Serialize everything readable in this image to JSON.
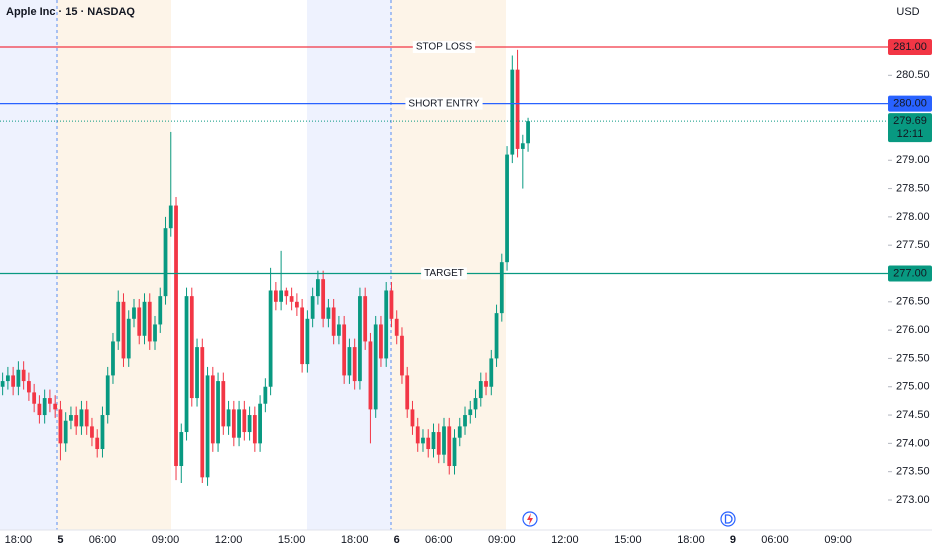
{
  "chart_data": {
    "type": "candlestick",
    "title": "Apple Inc · 15 · NASDAQ",
    "currency": "USD",
    "up_color": "#089981",
    "down_color": "#f23645",
    "ylim": [
      272.47,
      281.83
    ],
    "yticks": [
      {
        "value": 273,
        "label": "273.00"
      },
      {
        "value": 273.5,
        "label": "273.50"
      },
      {
        "value": 274,
        "label": "274.00"
      },
      {
        "value": 274.5,
        "label": "274.50"
      },
      {
        "value": 275,
        "label": "275.00"
      },
      {
        "value": 275.5,
        "label": "275.50"
      },
      {
        "value": 276,
        "label": "276.00"
      },
      {
        "value": 276.5,
        "label": "276.50"
      },
      {
        "value": 277.5,
        "label": "277.50"
      },
      {
        "value": 278,
        "label": "278.00"
      },
      {
        "value": 278.5,
        "label": "278.50"
      },
      {
        "value": 279,
        "label": "279.00"
      },
      {
        "value": 279.5,
        "label": "279.50"
      },
      {
        "value": 280.5,
        "label": "280.50"
      }
    ],
    "levels": [
      {
        "name": "STOP LOSS",
        "value": 281,
        "label": "281.00",
        "color": "#f23645"
      },
      {
        "name": "SHORT ENTRY",
        "value": 280,
        "label": "280.00",
        "color": "#2962ff"
      },
      {
        "name": "TARGET",
        "value": 277,
        "label": "277.00",
        "color": "#089981"
      }
    ],
    "last_price": {
      "value": 279.69,
      "countdown": "12:11",
      "color": "#089981"
    },
    "categories": [
      null,
      null,
      null,
      "18:00",
      null,
      null,
      null,
      null,
      null,
      null,
      null,
      "5",
      null,
      null,
      null,
      null,
      null,
      null,
      null,
      "06:00",
      null,
      null,
      null,
      null,
      null,
      null,
      null,
      null,
      null,
      null,
      null,
      "09:00",
      null,
      null,
      null,
      null,
      null,
      null,
      null,
      null,
      null,
      null,
      null,
      "12:00",
      null,
      null,
      null,
      null,
      null,
      null,
      null,
      null,
      null,
      null,
      null,
      "15:00",
      null,
      null,
      null,
      null,
      null,
      null,
      null,
      null,
      null,
      null,
      null,
      "18:00",
      null,
      null,
      null,
      null,
      null,
      null,
      null,
      "6",
      null,
      null,
      null,
      null,
      null,
      null,
      null,
      "06:00",
      null,
      null,
      null,
      null,
      null,
      null,
      null,
      null,
      null,
      null,
      null,
      "09:00",
      null,
      null,
      null,
      null,
      null,
      null,
      null,
      null,
      null,
      null,
      null,
      "12:00",
      null,
      null,
      null,
      null,
      null,
      null,
      null,
      null,
      null,
      null,
      null,
      "15:00",
      null,
      null,
      null,
      null,
      null,
      null,
      null,
      null,
      null,
      null,
      null,
      "18:00",
      null,
      null,
      null,
      null,
      null,
      null,
      null,
      "9",
      null,
      null,
      null,
      null,
      null,
      null,
      null,
      "06:00",
      null,
      null,
      null,
      null,
      null,
      null,
      null,
      null,
      null,
      null,
      null,
      "09:00",
      null,
      null,
      null,
      null,
      null,
      null,
      null,
      null,
      null
    ],
    "open": [
      275.0,
      275.1,
      275.2,
      275.0,
      275.3,
      275.1,
      274.9,
      274.7,
      274.5,
      274.8,
      274.7,
      274.6,
      274.0,
      274.4,
      274.5,
      274.3,
      274.6,
      274.3,
      274.1,
      273.9,
      274.5,
      275.2,
      275.8,
      276.5,
      275.5,
      276.2,
      276.4,
      275.9,
      276.5,
      275.8,
      276.1,
      276.6,
      277.8,
      278.2,
      273.6,
      274.2,
      276.6,
      274.8,
      275.7,
      273.4,
      275.2,
      274.0,
      275.1,
      274.3,
      274.6,
      274.1,
      274.6,
      274.2,
      274.5,
      274.0,
      274.7,
      275.0,
      276.7,
      276.5,
      276.7,
      276.6,
      276.5,
      276.4,
      275.4,
      276.2,
      276.6,
      276.9,
      276.2,
      276.4,
      275.9,
      276.1,
      275.2,
      275.7,
      275.1,
      276.6,
      275.8,
      274.6,
      276.1,
      275.5,
      276.7,
      276.2,
      275.9,
      275.2,
      274.6,
      274.3,
      274.0,
      274.1,
      273.9,
      274.2,
      273.8,
      274.3,
      273.6,
      274.1,
      274.3,
      274.5,
      274.6,
      274.8,
      275.1,
      275.0,
      275.5,
      276.3,
      277.2,
      279.1,
      280.6,
      279.2,
      279.3,
      null,
      null,
      null,
      null,
      null,
      null,
      null,
      null,
      null,
      null,
      null,
      null,
      null,
      null,
      null,
      null,
      null,
      null,
      null,
      null,
      null,
      null,
      null,
      null,
      null,
      null,
      null,
      null,
      null,
      null,
      null,
      null,
      null,
      null,
      null,
      null,
      null,
      null,
      null,
      null,
      null,
      null,
      null,
      null,
      null,
      null,
      null,
      null,
      null,
      null,
      null,
      null,
      null,
      null,
      null,
      null,
      null,
      null,
      null,
      null,
      null,
      null,
      null,
      null,
      null,
      null,
      null,
      null
    ],
    "high": [
      275.25,
      275.35,
      275.35,
      275.45,
      275.45,
      275.25,
      275.05,
      274.85,
      274.95,
      274.95,
      274.85,
      274.75,
      274.55,
      274.65,
      274.65,
      274.75,
      274.75,
      274.45,
      274.25,
      274.65,
      275.35,
      275.95,
      276.7,
      276.65,
      276.35,
      276.55,
      276.55,
      276.65,
      276.65,
      276.25,
      276.75,
      278.0,
      279.5,
      278.35,
      274.35,
      276.75,
      276.75,
      275.85,
      275.85,
      275.35,
      275.35,
      275.25,
      275.25,
      274.75,
      274.75,
      274.75,
      274.75,
      274.65,
      274.65,
      274.85,
      275.15,
      277.1,
      276.85,
      277.4,
      276.75,
      276.75,
      276.65,
      276.55,
      276.35,
      276.75,
      277.05,
      277.05,
      276.55,
      276.55,
      276.25,
      276.25,
      275.85,
      275.85,
      276.75,
      276.75,
      275.95,
      276.25,
      276.25,
      276.85,
      276.85,
      276.35,
      276.05,
      275.35,
      274.75,
      274.45,
      274.25,
      274.25,
      274.35,
      274.35,
      274.45,
      274.45,
      274.25,
      274.45,
      274.65,
      274.75,
      274.95,
      275.25,
      275.25,
      275.65,
      276.45,
      277.35,
      279.25,
      280.85,
      280.95,
      279.45,
      279.75,
      null,
      null,
      null,
      null,
      null,
      null,
      null,
      null,
      null,
      null,
      null,
      null,
      null,
      null,
      null,
      null,
      null,
      null,
      null,
      null,
      null,
      null,
      null,
      null,
      null,
      null,
      null,
      null,
      null,
      null,
      null,
      null,
      null,
      null,
      null,
      null,
      null,
      null,
      null,
      null,
      null,
      null,
      null,
      null,
      null,
      null,
      null,
      null,
      null,
      null,
      null,
      null,
      null,
      null,
      null,
      null,
      null,
      null,
      null,
      null,
      null,
      null,
      null,
      null,
      null,
      null,
      null,
      null
    ],
    "low": [
      274.85,
      274.95,
      274.85,
      274.85,
      274.95,
      274.75,
      274.55,
      274.35,
      274.35,
      274.55,
      274.45,
      273.7,
      273.85,
      274.25,
      274.15,
      274.15,
      274.15,
      273.95,
      273.75,
      273.75,
      274.35,
      275.05,
      275.65,
      275.35,
      275.35,
      276.05,
      275.75,
      275.75,
      275.65,
      275.65,
      275.95,
      276.45,
      277.65,
      273.35,
      273.3,
      274.05,
      274.65,
      274.65,
      273.3,
      273.25,
      273.85,
      273.85,
      274.15,
      274.15,
      273.95,
      273.95,
      274.05,
      274.05,
      273.85,
      273.85,
      274.55,
      274.85,
      276.35,
      276.35,
      276.45,
      276.35,
      276.25,
      275.25,
      275.25,
      276.05,
      276.45,
      276.05,
      276.05,
      275.75,
      275.75,
      275.05,
      275.05,
      274.95,
      274.95,
      275.65,
      274.0,
      274.45,
      275.35,
      275.35,
      276.05,
      275.75,
      275.05,
      274.45,
      274.15,
      273.85,
      273.85,
      273.75,
      273.75,
      273.65,
      273.65,
      273.45,
      273.45,
      273.95,
      274.15,
      274.35,
      274.45,
      274.65,
      274.85,
      274.85,
      275.35,
      276.15,
      277.05,
      278.95,
      279.05,
      278.5,
      279.15,
      null,
      null,
      null,
      null,
      null,
      null,
      null,
      null,
      null,
      null,
      null,
      null,
      null,
      null,
      null,
      null,
      null,
      null,
      null,
      null,
      null,
      null,
      null,
      null,
      null,
      null,
      null,
      null,
      null,
      null,
      null,
      null,
      null,
      null,
      null,
      null,
      null,
      null,
      null,
      null,
      null,
      null,
      null,
      null,
      null,
      null,
      null,
      null,
      null,
      null,
      null,
      null,
      null,
      null,
      null,
      null,
      null,
      null,
      null,
      null,
      null,
      null,
      null,
      null,
      null,
      null,
      null,
      null
    ],
    "close": [
      275.1,
      275.2,
      275.0,
      275.3,
      275.1,
      274.9,
      274.7,
      274.5,
      274.8,
      274.7,
      274.6,
      274.0,
      274.4,
      274.5,
      274.3,
      274.6,
      274.3,
      274.1,
      273.9,
      274.5,
      275.2,
      275.8,
      276.5,
      275.5,
      276.2,
      276.4,
      275.9,
      276.5,
      275.8,
      276.1,
      276.6,
      277.8,
      278.2,
      273.6,
      274.2,
      276.6,
      274.8,
      275.7,
      273.4,
      275.2,
      274.0,
      275.1,
      274.3,
      274.6,
      274.1,
      274.6,
      274.2,
      274.5,
      274.0,
      274.7,
      275.0,
      276.7,
      276.5,
      276.7,
      276.6,
      276.5,
      276.4,
      275.4,
      276.2,
      276.6,
      276.9,
      276.2,
      276.4,
      275.9,
      276.1,
      275.2,
      275.7,
      275.1,
      276.6,
      275.8,
      274.6,
      276.1,
      275.5,
      276.7,
      276.2,
      275.9,
      275.2,
      274.6,
      274.3,
      274.0,
      274.1,
      273.9,
      274.2,
      273.8,
      274.3,
      273.6,
      274.1,
      274.3,
      274.5,
      274.6,
      274.8,
      275.1,
      275.0,
      275.5,
      276.3,
      277.2,
      279.1,
      280.6,
      279.2,
      279.3,
      279.69,
      null,
      null,
      null,
      null,
      null,
      null,
      null,
      null,
      null,
      null,
      null,
      null,
      null,
      null,
      null,
      null,
      null,
      null,
      null,
      null,
      null,
      null,
      null,
      null,
      null,
      null,
      null,
      null,
      null,
      null,
      null,
      null,
      null,
      null,
      null,
      null,
      null,
      null,
      null,
      null,
      null,
      null,
      null,
      null,
      null,
      null,
      null,
      null,
      null,
      null,
      null,
      null,
      null,
      null,
      null,
      null,
      null,
      null,
      null,
      null,
      null,
      null,
      null,
      null,
      null,
      null,
      null,
      null
    ]
  }
}
